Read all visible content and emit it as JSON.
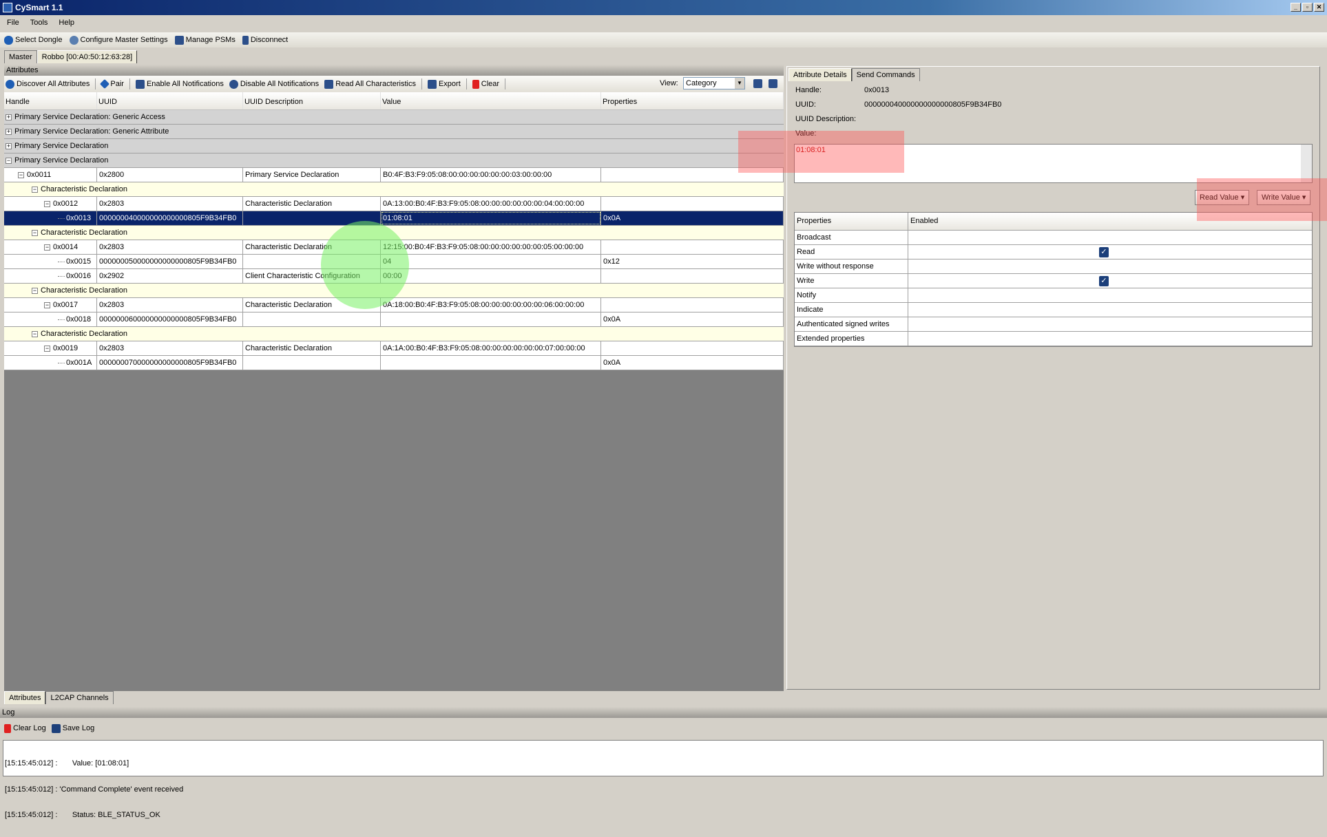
{
  "window": {
    "title": "CySmart 1.1"
  },
  "menu": [
    "File",
    "Tools",
    "Help"
  ],
  "toolbar": [
    "Select Dongle",
    "Configure Master Settings",
    "Manage PSMs",
    "Disconnect"
  ],
  "device_tabs": [
    "Master",
    "Robbo [00:A0:50:12:63:28]"
  ],
  "attributes": {
    "panel_title": "Attributes",
    "toolbar": [
      "Discover All Attributes",
      "Pair",
      "Enable All Notifications",
      "Disable All Notifications",
      "Read All Characteristics",
      "Export",
      "Clear"
    ],
    "view_label": "View:",
    "view_value": "Category",
    "columns": [
      "Handle",
      "UUID",
      "UUID Description",
      "Value",
      "Properties"
    ],
    "rows": [
      {
        "type": "group",
        "level": 0,
        "exp": "+",
        "label": "Primary Service Declaration: Generic Access"
      },
      {
        "type": "group",
        "level": 0,
        "exp": "+",
        "label": "Primary Service Declaration: Generic Attribute"
      },
      {
        "type": "group",
        "level": 0,
        "exp": "+",
        "label": "Primary Service Declaration"
      },
      {
        "type": "group",
        "level": 0,
        "exp": "-",
        "label": "Primary Service Declaration"
      },
      {
        "type": "h",
        "level": 1,
        "exp": "-",
        "handle": "0x0011",
        "uuid": "0x2800",
        "desc": "Primary Service Declaration",
        "value": "B0:4F:B3:F9:05:08:00:00:00:00:00:00:03:00:00:00",
        "props": ""
      },
      {
        "type": "cd",
        "level": 2,
        "exp": "-",
        "label": "Characteristic Declaration"
      },
      {
        "type": "h",
        "level": 3,
        "exp": "-",
        "handle": "0x0012",
        "uuid": "0x2803",
        "desc": "Characteristic Declaration",
        "value": "0A:13:00:B0:4F:B3:F9:05:08:00:00:00:00:00:00:04:00:00:00",
        "props": ""
      },
      {
        "type": "sel",
        "level": 4,
        "exp": "",
        "handle": "0x0013",
        "uuid": "000000040000000000000805F9B34FB0",
        "desc": "",
        "value": "01:08:01",
        "props": "0x0A"
      },
      {
        "type": "cd",
        "level": 2,
        "exp": "-",
        "label": "Characteristic Declaration"
      },
      {
        "type": "h",
        "level": 3,
        "exp": "-",
        "handle": "0x0014",
        "uuid": "0x2803",
        "desc": "Characteristic Declaration",
        "value": "12:15:00:B0:4F:B3:F9:05:08:00:00:00:00:00:00:05:00:00:00",
        "props": ""
      },
      {
        "type": "h",
        "level": 4,
        "exp": "",
        "handle": "0x0015",
        "uuid": "000000050000000000000805F9B34FB0",
        "desc": "",
        "value": "04",
        "props": "0x12"
      },
      {
        "type": "h",
        "level": 4,
        "exp": "",
        "handle": "0x0016",
        "uuid": "0x2902",
        "desc": "Client Characteristic Configuration",
        "value": "00:00",
        "props": ""
      },
      {
        "type": "cd",
        "level": 2,
        "exp": "-",
        "label": "Characteristic Declaration"
      },
      {
        "type": "h",
        "level": 3,
        "exp": "-",
        "handle": "0x0017",
        "uuid": "0x2803",
        "desc": "Characteristic Declaration",
        "value": "0A:18:00:B0:4F:B3:F9:05:08:00:00:00:00:00:00:06:00:00:00",
        "props": ""
      },
      {
        "type": "h",
        "level": 4,
        "exp": "",
        "handle": "0x0018",
        "uuid": "000000060000000000000805F9B34FB0",
        "desc": "",
        "value": "",
        "props": "0x0A"
      },
      {
        "type": "cd",
        "level": 2,
        "exp": "-",
        "label": "Characteristic Declaration"
      },
      {
        "type": "h",
        "level": 3,
        "exp": "-",
        "handle": "0x0019",
        "uuid": "0x2803",
        "desc": "Characteristic Declaration",
        "value": "0A:1A:00:B0:4F:B3:F9:05:08:00:00:00:00:00:00:07:00:00:00",
        "props": ""
      },
      {
        "type": "h",
        "level": 4,
        "exp": "",
        "handle": "0x001A",
        "uuid": "000000070000000000000805F9B34FB0",
        "desc": "",
        "value": "",
        "props": "0x0A"
      }
    ]
  },
  "bottom_tabs": [
    "Attributes",
    "L2CAP Channels"
  ],
  "details": {
    "tabs": [
      "Attribute Details",
      "Send Commands"
    ],
    "handle_label": "Handle:",
    "handle": "0x0013",
    "uuid_label": "UUID:",
    "uuid": "000000040000000000000805F9B34FB0",
    "uuid_desc_label": "UUID Description:",
    "uuid_desc": "",
    "value_label": "Value:",
    "value": "01:08:01",
    "read_button": "Read Value",
    "write_button": "Write Value",
    "props_header": [
      "Properties",
      "Enabled"
    ],
    "props": [
      {
        "name": "Broadcast",
        "enabled": false
      },
      {
        "name": "Read",
        "enabled": true
      },
      {
        "name": "Write without response",
        "enabled": false
      },
      {
        "name": "Write",
        "enabled": true
      },
      {
        "name": "Notify",
        "enabled": false
      },
      {
        "name": "Indicate",
        "enabled": false
      },
      {
        "name": "Authenticated signed writes",
        "enabled": false
      },
      {
        "name": "Extended properties",
        "enabled": false
      }
    ]
  },
  "log": {
    "title": "Log",
    "clear": "Clear Log",
    "save": "Save Log",
    "lines": [
      "[15:15:45:012] :       Value: [01:08:01]",
      "[15:15:45:012] : 'Command Complete' event received",
      "[15:15:45:012] :       Status: BLE_STATUS_OK"
    ]
  },
  "colors": {
    "selection": "#0a246a",
    "char_decl_row": "#ffffe6",
    "group_row": "#d3d3d3",
    "value_text": "#c00000",
    "highlight_red": "#ff5050",
    "highlight_green": "#78f064"
  }
}
